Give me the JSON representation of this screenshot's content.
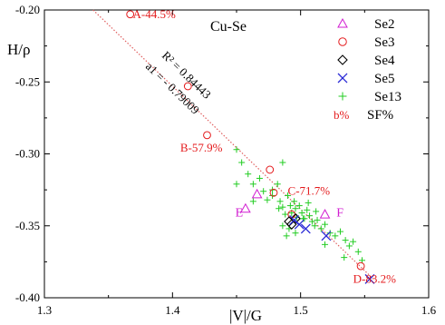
{
  "chart_data": {
    "type": "scatter",
    "title": "Cu-Se",
    "xlabel": "|V|/G",
    "ylabel": "H/ρ",
    "xlim": [
      1.3,
      1.6
    ],
    "ylim": [
      -0.4,
      -0.2
    ],
    "xticks": [
      1.3,
      1.4,
      1.5,
      1.6
    ],
    "yticks": [
      -0.2,
      -0.25,
      -0.3,
      -0.35,
      -0.4
    ],
    "xtick_labels": [
      "1.3",
      "1.4",
      "1.5",
      "1.6"
    ],
    "ytick_labels": [
      "-0.20",
      "-0.25",
      "-0.30",
      "-0.35",
      "-0.40"
    ],
    "legend_position": "top-right",
    "series": [
      {
        "name": "Se2",
        "marker": "triangle",
        "color": "#d11dd1",
        "points": [
          [
            1.466,
            -0.328
          ],
          [
            1.457,
            -0.338
          ],
          [
            1.519,
            -0.342
          ]
        ]
      },
      {
        "name": "Se3",
        "marker": "circle",
        "color": "#e41a1c",
        "points": [
          [
            1.367,
            -0.203
          ],
          [
            1.412,
            -0.253
          ],
          [
            1.427,
            -0.287
          ],
          [
            1.476,
            -0.311
          ],
          [
            1.479,
            -0.327
          ],
          [
            1.493,
            -0.342
          ],
          [
            1.547,
            -0.378
          ]
        ]
      },
      {
        "name": "Se4",
        "marker": "diamond",
        "color": "#000000",
        "points": [
          [
            1.491,
            -0.347
          ],
          [
            1.493,
            -0.349
          ],
          [
            1.496,
            -0.345
          ]
        ]
      },
      {
        "name": "Se5",
        "marker": "x",
        "color": "#2a2ad6",
        "points": [
          [
            1.495,
            -0.346
          ],
          [
            1.499,
            -0.349
          ],
          [
            1.504,
            -0.352
          ],
          [
            1.52,
            -0.357
          ],
          [
            1.554,
            -0.387
          ]
        ]
      },
      {
        "name": "Se13",
        "marker": "plus",
        "color": "#22cc22",
        "points": [
          [
            1.45,
            -0.297
          ],
          [
            1.454,
            -0.306
          ],
          [
            1.459,
            -0.314
          ],
          [
            1.463,
            -0.321
          ],
          [
            1.468,
            -0.317
          ],
          [
            1.471,
            -0.326
          ],
          [
            1.474,
            -0.332
          ],
          [
            1.478,
            -0.329
          ],
          [
            1.482,
            -0.321
          ],
          [
            1.484,
            -0.333
          ],
          [
            1.486,
            -0.337
          ],
          [
            1.488,
            -0.342
          ],
          [
            1.49,
            -0.329
          ],
          [
            1.492,
            -0.336
          ],
          [
            1.493,
            -0.341
          ],
          [
            1.495,
            -0.333
          ],
          [
            1.496,
            -0.338
          ],
          [
            1.497,
            -0.344
          ],
          [
            1.499,
            -0.336
          ],
          [
            1.501,
            -0.341
          ],
          [
            1.503,
            -0.345
          ],
          [
            1.505,
            -0.339
          ],
          [
            1.507,
            -0.343
          ],
          [
            1.509,
            -0.347
          ],
          [
            1.511,
            -0.35
          ],
          [
            1.513,
            -0.346
          ],
          [
            1.516,
            -0.352
          ],
          [
            1.519,
            -0.349
          ],
          [
            1.523,
            -0.355
          ],
          [
            1.527,
            -0.357
          ],
          [
            1.531,
            -0.354
          ],
          [
            1.535,
            -0.36
          ],
          [
            1.538,
            -0.364
          ],
          [
            1.541,
            -0.361
          ],
          [
            1.545,
            -0.368
          ],
          [
            1.548,
            -0.374
          ],
          [
            1.486,
            -0.306
          ],
          [
            1.486,
            -0.35
          ],
          [
            1.489,
            -0.357
          ],
          [
            1.478,
            -0.325
          ],
          [
            1.463,
            -0.333
          ],
          [
            1.45,
            -0.321
          ],
          [
            1.506,
            -0.334
          ],
          [
            1.534,
            -0.372
          ],
          [
            1.519,
            -0.363
          ],
          [
            1.491,
            -0.352
          ],
          [
            1.496,
            -0.355
          ],
          [
            1.502,
            -0.345
          ],
          [
            1.512,
            -0.34
          ],
          [
            1.483,
            -0.338
          ]
        ]
      }
    ],
    "fit_line": {
      "label_r2": "R² = 0.84443",
      "label_a1": "a1 = - 0.79009",
      "color": "#e06060",
      "points": [
        [
          1.338,
          -0.2
        ],
        [
          1.558,
          -0.388
        ]
      ]
    },
    "annotations": [
      {
        "text": "A-44.5%",
        "x": 1.369,
        "y": -0.203,
        "color": "#e41a1c"
      },
      {
        "text": "B-57.9%",
        "x": 1.406,
        "y": -0.296,
        "color": "#e41a1c"
      },
      {
        "text": "C-71.7%",
        "x": 1.49,
        "y": -0.326,
        "color": "#e41a1c"
      },
      {
        "text": "D-83.2%",
        "x": 1.541,
        "y": -0.387,
        "color": "#e41a1c"
      },
      {
        "text": "E",
        "x": 1.449,
        "y": -0.341,
        "color": "#d11dd1"
      },
      {
        "text": "F",
        "x": 1.528,
        "y": -0.341,
        "color": "#d11dd1"
      }
    ],
    "legend_extra": {
      "marker_text": "b%",
      "label": "SF%",
      "color": "#e41a1c"
    }
  }
}
